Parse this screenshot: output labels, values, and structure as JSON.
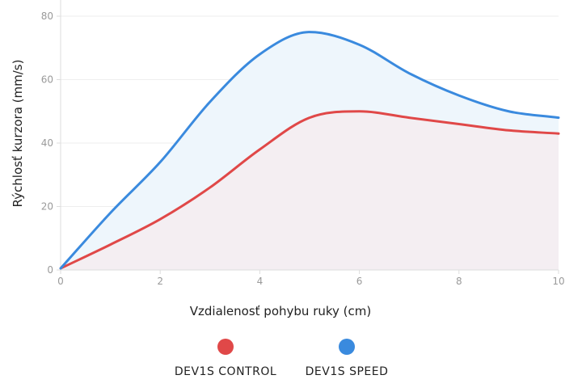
{
  "chart_data": {
    "type": "area",
    "title": "",
    "xlabel": "Vzdialenosť pohybu ruky (cm)",
    "ylabel": "Rýchlosť kurzora (mm/s)",
    "xlim": [
      0,
      10
    ],
    "ylim": [
      0,
      80
    ],
    "xticks": [
      0,
      2,
      4,
      6,
      8,
      10
    ],
    "yticks": [
      0,
      20,
      40,
      60,
      80
    ],
    "grid": "horizontal",
    "legend_position": "bottom-center",
    "series": [
      {
        "name": "DEV1S CONTROL",
        "color": "#e04848",
        "fill": "#f4eef2",
        "x": [
          0,
          1,
          2,
          3,
          4,
          5,
          6,
          7,
          8,
          9,
          10
        ],
        "y": [
          0.5,
          8,
          16,
          26,
          38,
          48,
          50,
          48,
          46,
          44,
          43
        ]
      },
      {
        "name": "DEV1S SPEED",
        "color": "#3a8ade",
        "fill": "#eef6fc",
        "x": [
          0,
          1,
          2,
          3,
          4,
          5,
          6,
          7,
          8,
          9,
          10
        ],
        "y": [
          0.5,
          18,
          34,
          53,
          68,
          75,
          71,
          62,
          55,
          50,
          48
        ]
      }
    ]
  }
}
